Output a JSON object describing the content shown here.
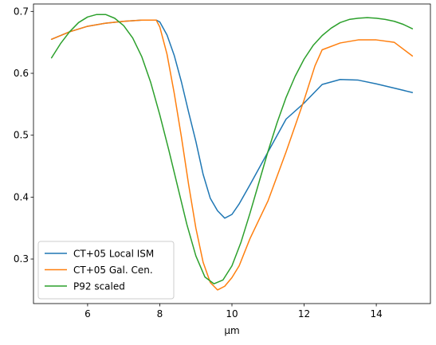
{
  "chart_data": {
    "type": "line",
    "title": "",
    "xlabel": "µm",
    "ylabel": "",
    "xlim": [
      4.5,
      15.5
    ],
    "ylim": [
      0.228,
      0.712
    ],
    "xticks": [
      6,
      8,
      10,
      12,
      14
    ],
    "yticks": [
      0.3,
      0.4,
      0.5,
      0.6,
      0.7
    ],
    "xtick_labels": [
      "6",
      "8",
      "10",
      "12",
      "14"
    ],
    "ytick_labels": [
      "0.3",
      "0.4",
      "0.5",
      "0.6",
      "0.7"
    ],
    "grid": false,
    "legend_position": "lower-left",
    "series": [
      {
        "name": "CT+05 Local ISM",
        "color": "#1f77b4",
        "x": [
          5.0,
          5.5,
          6.0,
          6.5,
          7.0,
          7.5,
          7.9,
          8.0,
          8.2,
          8.4,
          8.6,
          8.8,
          9.0,
          9.2,
          9.4,
          9.6,
          9.8,
          10.0,
          10.2,
          10.5,
          11.0,
          11.5,
          12.0,
          12.5,
          13.0,
          13.5,
          14.0,
          14.5,
          15.0
        ],
        "y": [
          0.655,
          0.667,
          0.676,
          0.681,
          0.684,
          0.686,
          0.686,
          0.683,
          0.662,
          0.629,
          0.586,
          0.537,
          0.49,
          0.437,
          0.398,
          0.378,
          0.366,
          0.372,
          0.389,
          0.42,
          0.473,
          0.526,
          0.552,
          0.582,
          0.59,
          0.589,
          0.583,
          0.576,
          0.569
        ]
      },
      {
        "name": "CT+05 Gal. Cen.",
        "color": "#ff7f0e",
        "x": [
          5.0,
          5.5,
          6.0,
          6.5,
          7.0,
          7.5,
          7.9,
          8.0,
          8.2,
          8.4,
          8.6,
          8.8,
          9.0,
          9.2,
          9.4,
          9.6,
          9.8,
          10.0,
          10.2,
          10.5,
          11.0,
          11.5,
          12.0,
          12.3,
          12.5,
          13.0,
          13.5,
          14.0,
          14.5,
          15.0
        ],
        "y": [
          0.655,
          0.667,
          0.676,
          0.681,
          0.684,
          0.686,
          0.686,
          0.675,
          0.631,
          0.568,
          0.497,
          0.42,
          0.35,
          0.295,
          0.262,
          0.25,
          0.256,
          0.27,
          0.289,
          0.333,
          0.394,
          0.473,
          0.557,
          0.612,
          0.638,
          0.649,
          0.654,
          0.654,
          0.65,
          0.628
        ]
      },
      {
        "name": "P92 scaled",
        "color": "#2ca02c",
        "x": [
          5.0,
          5.25,
          5.5,
          5.75,
          6.0,
          6.25,
          6.5,
          6.75,
          7.0,
          7.25,
          7.5,
          7.75,
          8.0,
          8.25,
          8.5,
          8.75,
          9.0,
          9.25,
          9.5,
          9.75,
          10.0,
          10.25,
          10.5,
          10.75,
          11.0,
          11.25,
          11.5,
          11.75,
          12.0,
          12.25,
          12.5,
          12.75,
          13.0,
          13.25,
          13.5,
          13.75,
          14.0,
          14.25,
          14.5,
          14.75,
          15.0
        ],
        "y": [
          0.625,
          0.648,
          0.667,
          0.682,
          0.691,
          0.695,
          0.695,
          0.689,
          0.677,
          0.657,
          0.627,
          0.585,
          0.533,
          0.476,
          0.416,
          0.356,
          0.305,
          0.271,
          0.26,
          0.266,
          0.289,
          0.327,
          0.374,
          0.424,
          0.474,
          0.52,
          0.561,
          0.595,
          0.623,
          0.645,
          0.661,
          0.673,
          0.682,
          0.687,
          0.689,
          0.69,
          0.689,
          0.687,
          0.684,
          0.679,
          0.672
        ]
      }
    ]
  }
}
